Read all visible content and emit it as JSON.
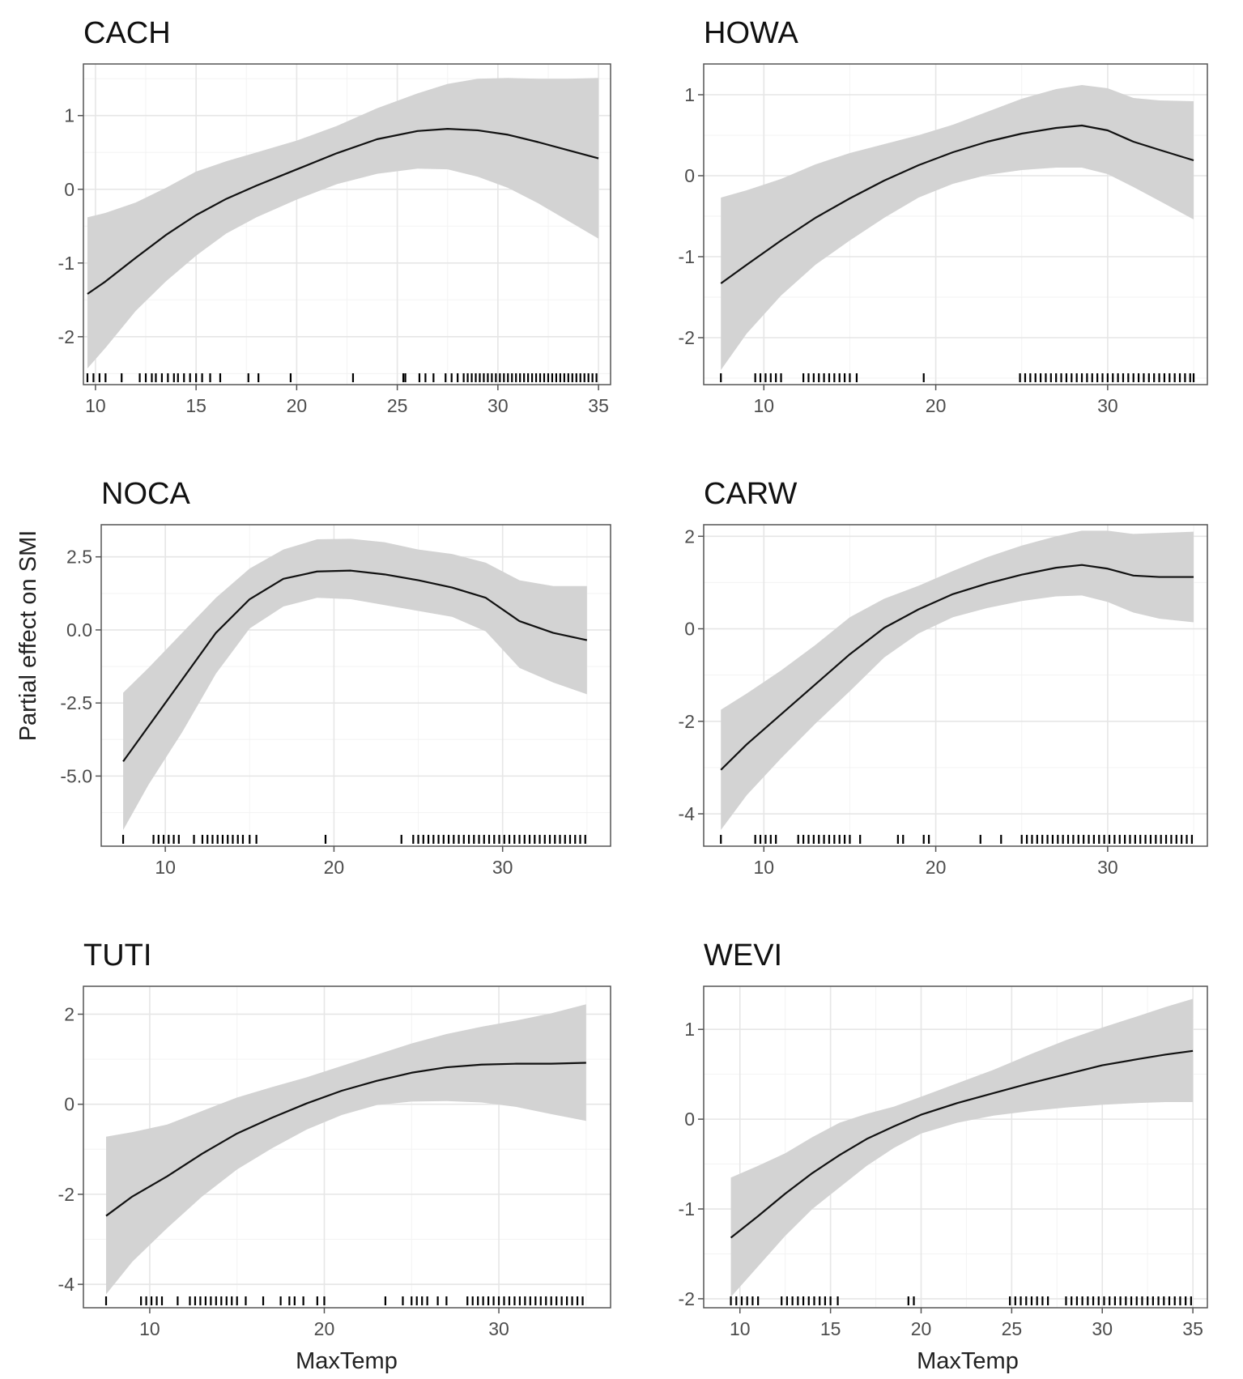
{
  "figure": {
    "ylabel": "Partial effect on SMI",
    "xlabel": "MaxTemp"
  },
  "colors": {
    "ribbon": "#d3d3d3",
    "line": "#111111",
    "grid_major": "#e6e6e6",
    "grid_minor": "#f3f3f3",
    "frame": "#555555",
    "rug": "#000000"
  },
  "chart_data": [
    {
      "type": "line",
      "title": "CACH",
      "xlabel": "MaxTemp",
      "ylabel": "Partial effect on SMI",
      "xlim": [
        9.4,
        35.6
      ],
      "ylim": [
        -2.65,
        1.7
      ],
      "xticks": [
        10,
        15,
        20,
        25,
        30,
        35
      ],
      "xtick_labels": [
        "10",
        "15",
        "20",
        "25",
        "30",
        "35"
      ],
      "yticks": [
        -2,
        -1,
        0,
        1
      ],
      "ytick_labels": [
        "-2",
        "-1",
        "0",
        "1"
      ],
      "x": [
        9.6,
        10.5,
        12,
        13.5,
        15,
        16.5,
        18,
        20,
        22,
        24,
        26,
        27.5,
        29,
        30.5,
        32,
        33.5,
        35
      ],
      "fit": [
        -1.42,
        -1.25,
        -0.93,
        -0.62,
        -0.35,
        -0.13,
        0.05,
        0.27,
        0.49,
        0.68,
        0.79,
        0.82,
        0.8,
        0.74,
        0.64,
        0.53,
        0.42
      ],
      "upper": [
        -0.38,
        -0.32,
        -0.18,
        0.02,
        0.24,
        0.38,
        0.5,
        0.66,
        0.86,
        1.1,
        1.3,
        1.43,
        1.5,
        1.51,
        1.5,
        1.5,
        1.51
      ],
      "lower": [
        -2.43,
        -2.15,
        -1.65,
        -1.25,
        -0.9,
        -0.6,
        -0.38,
        -0.14,
        0.07,
        0.21,
        0.28,
        0.27,
        0.17,
        0.02,
        -0.19,
        -0.43,
        -0.67
      ],
      "rug": [
        9.6,
        9.9,
        10.2,
        10.5,
        11.3,
        12.2,
        12.5,
        12.8,
        13.0,
        13.3,
        13.6,
        13.9,
        14.1,
        14.4,
        14.7,
        15.0,
        15.3,
        15.7,
        16.2,
        17.6,
        18.1,
        19.7,
        22.8,
        25.3,
        25.4,
        26.1,
        26.4,
        26.8,
        27.4,
        27.7,
        28.0,
        28.3,
        28.5,
        28.7,
        28.9,
        29.1,
        29.3,
        29.5,
        29.7,
        29.9,
        30.1,
        30.3,
        30.5,
        30.7,
        30.9,
        31.1,
        31.3,
        31.5,
        31.7,
        31.9,
        32.1,
        32.3,
        32.5,
        32.7,
        32.9,
        33.1,
        33.3,
        33.5,
        33.7,
        33.9,
        34.1,
        34.3,
        34.5,
        34.7,
        34.9
      ]
    },
    {
      "type": "line",
      "title": "HOWA",
      "xlabel": "MaxTemp",
      "ylabel": "Partial effect on SMI",
      "xlim": [
        6.5,
        35.8
      ],
      "ylim": [
        -2.58,
        1.38
      ],
      "xticks": [
        10,
        20,
        30
      ],
      "xtick_labels": [
        "10",
        "20",
        "30"
      ],
      "yticks": [
        -2,
        -1,
        0,
        1
      ],
      "ytick_labels": [
        "-2",
        "-1",
        "0",
        "1"
      ],
      "x": [
        7.5,
        9,
        11,
        13,
        15,
        17,
        19,
        21,
        23,
        25,
        27,
        28.5,
        30,
        31.5,
        33,
        35
      ],
      "fit": [
        -1.33,
        -1.1,
        -0.8,
        -0.52,
        -0.28,
        -0.06,
        0.13,
        0.29,
        0.42,
        0.52,
        0.59,
        0.62,
        0.56,
        0.42,
        0.32,
        0.19
      ],
      "upper": [
        -0.27,
        -0.18,
        -0.04,
        0.14,
        0.28,
        0.39,
        0.5,
        0.63,
        0.79,
        0.95,
        1.07,
        1.12,
        1.08,
        0.96,
        0.93,
        0.92
      ],
      "lower": [
        -2.4,
        -1.95,
        -1.48,
        -1.1,
        -0.8,
        -0.52,
        -0.27,
        -0.1,
        0.01,
        0.07,
        0.1,
        0.1,
        0.02,
        -0.14,
        -0.31,
        -0.54
      ],
      "rug": [
        7.5,
        9.5,
        9.8,
        10.1,
        10.4,
        10.7,
        11.0,
        12.3,
        12.6,
        12.9,
        13.2,
        13.5,
        13.8,
        14.1,
        14.4,
        14.7,
        15.0,
        15.4,
        19.3,
        24.9,
        25.2,
        25.5,
        25.8,
        26.1,
        26.4,
        26.7,
        27.0,
        27.3,
        27.6,
        27.9,
        28.2,
        28.5,
        28.8,
        29.1,
        29.4,
        29.7,
        30.0,
        30.3,
        30.6,
        30.9,
        31.2,
        31.5,
        31.8,
        32.1,
        32.4,
        32.7,
        33.0,
        33.3,
        33.6,
        33.9,
        34.2,
        34.5,
        34.8,
        35.0
      ]
    },
    {
      "type": "line",
      "title": "NOCA",
      "xlabel": "",
      "ylabel": "Partial effect on SMI",
      "xlim": [
        6.2,
        36.4
      ],
      "ylim": [
        -7.4,
        3.6
      ],
      "xticks": [
        10,
        20,
        30
      ],
      "xtick_labels": [
        "10",
        "20",
        "30"
      ],
      "yticks": [
        -5.0,
        -2.5,
        0.0,
        2.5
      ],
      "ytick_labels": [
        "-5.0",
        "-2.5",
        "0.0",
        "2.5"
      ],
      "x": [
        7.5,
        9,
        11,
        13,
        15,
        17,
        19,
        21,
        23,
        25,
        27,
        29,
        31,
        33,
        35
      ],
      "fit": [
        -4.5,
        -3.3,
        -1.7,
        -0.1,
        1.05,
        1.75,
        2.0,
        2.03,
        1.9,
        1.7,
        1.45,
        1.1,
        0.3,
        -0.1,
        -0.35
      ],
      "upper": [
        -2.15,
        -1.3,
        -0.1,
        1.1,
        2.1,
        2.75,
        3.1,
        3.12,
        3.0,
        2.75,
        2.6,
        2.3,
        1.7,
        1.5,
        1.5
      ],
      "lower": [
        -6.85,
        -5.3,
        -3.5,
        -1.5,
        0.05,
        0.8,
        1.1,
        1.05,
        0.85,
        0.65,
        0.45,
        -0.05,
        -1.3,
        -1.8,
        -2.2
      ],
      "rug": [
        7.5,
        9.3,
        9.6,
        9.9,
        10.2,
        10.5,
        10.8,
        11.7,
        12.2,
        12.5,
        12.8,
        13.1,
        13.4,
        13.7,
        14.0,
        14.3,
        14.6,
        15.0,
        15.4,
        19.5,
        24.0,
        24.7,
        25.0,
        25.3,
        25.6,
        25.9,
        26.2,
        26.5,
        26.8,
        27.1,
        27.4,
        27.7,
        28.0,
        28.3,
        28.6,
        28.9,
        29.2,
        29.5,
        29.8,
        30.1,
        30.4,
        30.7,
        31.0,
        31.3,
        31.6,
        31.9,
        32.2,
        32.5,
        32.8,
        33.1,
        33.4,
        33.7,
        34.0,
        34.3,
        34.6,
        34.9
      ]
    },
    {
      "type": "line",
      "title": "CARW",
      "xlabel": "",
      "ylabel": "Partial effect on SMI",
      "xlim": [
        6.5,
        35.8
      ],
      "ylim": [
        -4.7,
        2.25
      ],
      "xticks": [
        10,
        20,
        30
      ],
      "xtick_labels": [
        "10",
        "20",
        "30"
      ],
      "yticks": [
        -4,
        -2,
        0,
        2
      ],
      "ytick_labels": [
        "-4",
        "-2",
        "0",
        "2"
      ],
      "x": [
        7.5,
        9,
        11,
        13,
        15,
        17,
        19,
        21,
        23,
        25,
        27,
        28.5,
        30,
        31.5,
        33,
        35
      ],
      "fit": [
        -3.05,
        -2.5,
        -1.85,
        -1.2,
        -0.55,
        0.02,
        0.42,
        0.75,
        0.98,
        1.17,
        1.32,
        1.38,
        1.3,
        1.15,
        1.12,
        1.12
      ],
      "upper": [
        -1.75,
        -1.4,
        -0.9,
        -0.35,
        0.25,
        0.65,
        0.93,
        1.25,
        1.55,
        1.8,
        2.0,
        2.12,
        2.12,
        2.05,
        2.07,
        2.1
      ],
      "lower": [
        -4.35,
        -3.6,
        -2.8,
        -2.05,
        -1.35,
        -0.62,
        -0.1,
        0.25,
        0.45,
        0.6,
        0.7,
        0.72,
        0.58,
        0.35,
        0.22,
        0.14
      ],
      "rug": [
        7.5,
        9.5,
        9.8,
        10.1,
        10.4,
        10.7,
        12.0,
        12.3,
        12.6,
        12.9,
        13.2,
        13.5,
        13.8,
        14.1,
        14.4,
        14.7,
        15.0,
        15.6,
        17.8,
        18.1,
        19.3,
        19.6,
        22.6,
        23.8,
        25.0,
        25.3,
        25.6,
        25.9,
        26.2,
        26.5,
        26.8,
        27.1,
        27.4,
        27.7,
        28.0,
        28.3,
        28.6,
        28.9,
        29.2,
        29.5,
        29.8,
        30.1,
        30.4,
        30.7,
        31.0,
        31.3,
        31.6,
        31.9,
        32.2,
        32.5,
        32.8,
        33.1,
        33.4,
        33.7,
        34.0,
        34.3,
        34.6,
        34.9
      ]
    },
    {
      "type": "line",
      "title": "TUTI",
      "xlabel": "MaxTemp",
      "ylabel": "",
      "xlim": [
        6.2,
        36.4
      ],
      "ylim": [
        -4.52,
        2.62
      ],
      "xticks": [
        10,
        20,
        30
      ],
      "xtick_labels": [
        "10",
        "20",
        "30"
      ],
      "yticks": [
        -4,
        -2,
        0,
        2
      ],
      "ytick_labels": [
        "-4",
        "-2",
        "0",
        "2"
      ],
      "x": [
        7.5,
        9,
        11,
        13,
        15,
        17,
        19,
        21,
        23,
        25,
        27,
        29,
        31,
        33,
        35
      ],
      "fit": [
        -2.48,
        -2.05,
        -1.6,
        -1.1,
        -0.65,
        -0.3,
        0.02,
        0.3,
        0.52,
        0.7,
        0.82,
        0.88,
        0.9,
        0.9,
        0.92
      ],
      "upper": [
        -0.72,
        -0.62,
        -0.45,
        -0.15,
        0.15,
        0.38,
        0.6,
        0.85,
        1.1,
        1.35,
        1.56,
        1.72,
        1.86,
        2.02,
        2.22
      ],
      "lower": [
        -4.22,
        -3.5,
        -2.75,
        -2.05,
        -1.45,
        -0.98,
        -0.56,
        -0.24,
        -0.02,
        0.06,
        0.07,
        0.04,
        -0.06,
        -0.22,
        -0.37
      ],
      "rug": [
        7.5,
        9.5,
        9.8,
        10.1,
        10.4,
        10.7,
        11.6,
        12.3,
        12.6,
        12.9,
        13.2,
        13.5,
        13.8,
        14.1,
        14.4,
        14.7,
        15.0,
        15.5,
        16.5,
        17.5,
        18.0,
        18.3,
        18.8,
        19.6,
        20.0,
        23.5,
        24.5,
        25.0,
        25.3,
        25.6,
        25.9,
        26.5,
        27.0,
        28.2,
        28.5,
        28.8,
        29.1,
        29.4,
        29.7,
        30.0,
        30.3,
        30.6,
        30.9,
        31.2,
        31.5,
        31.8,
        32.1,
        32.4,
        32.7,
        33.0,
        33.3,
        33.6,
        33.9,
        34.2,
        34.5,
        34.8
      ]
    },
    {
      "type": "line",
      "title": "WEVI",
      "xlabel": "MaxTemp",
      "ylabel": "",
      "xlim": [
        8.0,
        35.8
      ],
      "ylim": [
        -2.1,
        1.48
      ],
      "xticks": [
        10,
        15,
        20,
        25,
        30,
        35
      ],
      "xtick_labels": [
        "10",
        "15",
        "20",
        "25",
        "30",
        "35"
      ],
      "yticks": [
        -2,
        -1,
        0,
        1
      ],
      "ytick_labels": [
        "-2",
        "-1",
        "0",
        "1"
      ],
      "x": [
        9.5,
        11,
        12.5,
        14,
        15.5,
        17,
        18.5,
        20,
        22,
        24,
        26,
        28,
        30,
        32,
        33.5,
        35
      ],
      "fit": [
        -1.32,
        -1.08,
        -0.83,
        -0.6,
        -0.4,
        -0.22,
        -0.08,
        0.05,
        0.18,
        0.29,
        0.4,
        0.5,
        0.6,
        0.67,
        0.72,
        0.76
      ],
      "upper": [
        -0.65,
        -0.52,
        -0.38,
        -0.2,
        -0.04,
        0.06,
        0.14,
        0.25,
        0.4,
        0.55,
        0.72,
        0.88,
        1.02,
        1.15,
        1.25,
        1.34
      ],
      "lower": [
        -1.98,
        -1.64,
        -1.3,
        -1.0,
        -0.76,
        -0.52,
        -0.32,
        -0.16,
        -0.04,
        0.04,
        0.09,
        0.13,
        0.16,
        0.18,
        0.19,
        0.19
      ],
      "rug": [
        9.5,
        9.8,
        10.1,
        10.4,
        10.7,
        11.0,
        12.3,
        12.6,
        12.9,
        13.2,
        13.5,
        13.8,
        14.1,
        14.4,
        14.7,
        15.0,
        15.4,
        19.3,
        19.6,
        24.9,
        25.2,
        25.5,
        25.8,
        26.1,
        26.4,
        26.7,
        27.0,
        28.0,
        28.3,
        28.6,
        28.9,
        29.2,
        29.5,
        29.8,
        30.1,
        30.4,
        30.7,
        31.0,
        31.3,
        31.6,
        31.9,
        32.2,
        32.5,
        32.8,
        33.1,
        33.4,
        33.7,
        34.0,
        34.3,
        34.6,
        34.9
      ]
    }
  ]
}
